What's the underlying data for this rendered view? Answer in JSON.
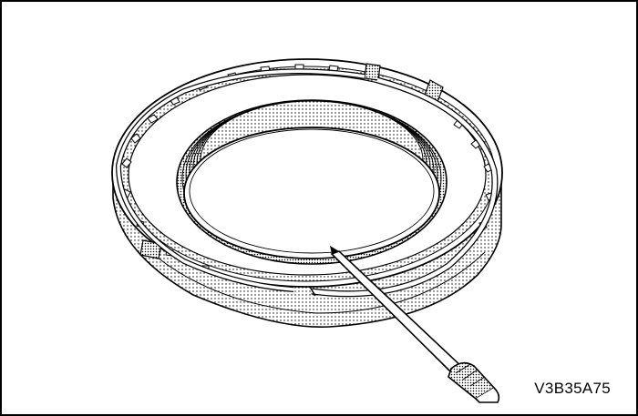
{
  "figure": {
    "code": "V3B35A75"
  },
  "colors": {
    "line": "#000000",
    "shade": "#9a9a9a",
    "paper": "#ffffff"
  }
}
